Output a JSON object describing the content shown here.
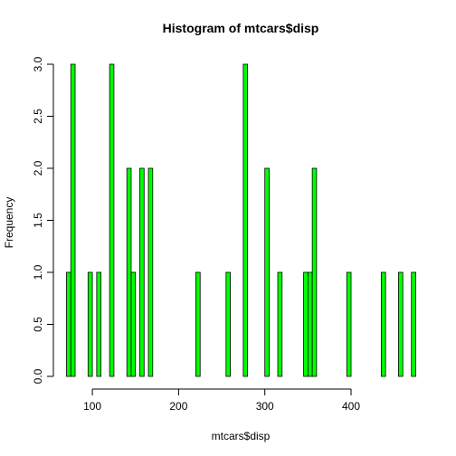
{
  "chart_data": {
    "type": "bar",
    "title": "Histogram of mtcars$disp",
    "xlabel": "mtcars$disp",
    "ylabel": "Frequency",
    "bin_width": 5,
    "xlim": [
      70,
      475
    ],
    "ylim": [
      0,
      3
    ],
    "x_ticks": [
      "100",
      "200",
      "300",
      "400"
    ],
    "y_ticks": [
      "0.0",
      "0.5",
      "1.0",
      "1.5",
      "2.0",
      "2.5",
      "3.0"
    ],
    "bar_color": "#00ff00",
    "bins": [
      {
        "start": 70,
        "end": 75,
        "count": 1
      },
      {
        "start": 75,
        "end": 80,
        "count": 3
      },
      {
        "start": 95,
        "end": 100,
        "count": 1
      },
      {
        "start": 105,
        "end": 110,
        "count": 1
      },
      {
        "start": 120,
        "end": 125,
        "count": 3
      },
      {
        "start": 140,
        "end": 145,
        "count": 2
      },
      {
        "start": 145,
        "end": 150,
        "count": 1
      },
      {
        "start": 155,
        "end": 160,
        "count": 2
      },
      {
        "start": 165,
        "end": 170,
        "count": 2
      },
      {
        "start": 220,
        "end": 225,
        "count": 1
      },
      {
        "start": 255,
        "end": 260,
        "count": 1
      },
      {
        "start": 275,
        "end": 280,
        "count": 3
      },
      {
        "start": 300,
        "end": 305,
        "count": 2
      },
      {
        "start": 315,
        "end": 320,
        "count": 1
      },
      {
        "start": 345,
        "end": 350,
        "count": 1
      },
      {
        "start": 350,
        "end": 355,
        "count": 1
      },
      {
        "start": 355,
        "end": 360,
        "count": 2
      },
      {
        "start": 395,
        "end": 400,
        "count": 1
      },
      {
        "start": 435,
        "end": 440,
        "count": 1
      },
      {
        "start": 455,
        "end": 460,
        "count": 1
      },
      {
        "start": 470,
        "end": 475,
        "count": 1
      }
    ]
  }
}
